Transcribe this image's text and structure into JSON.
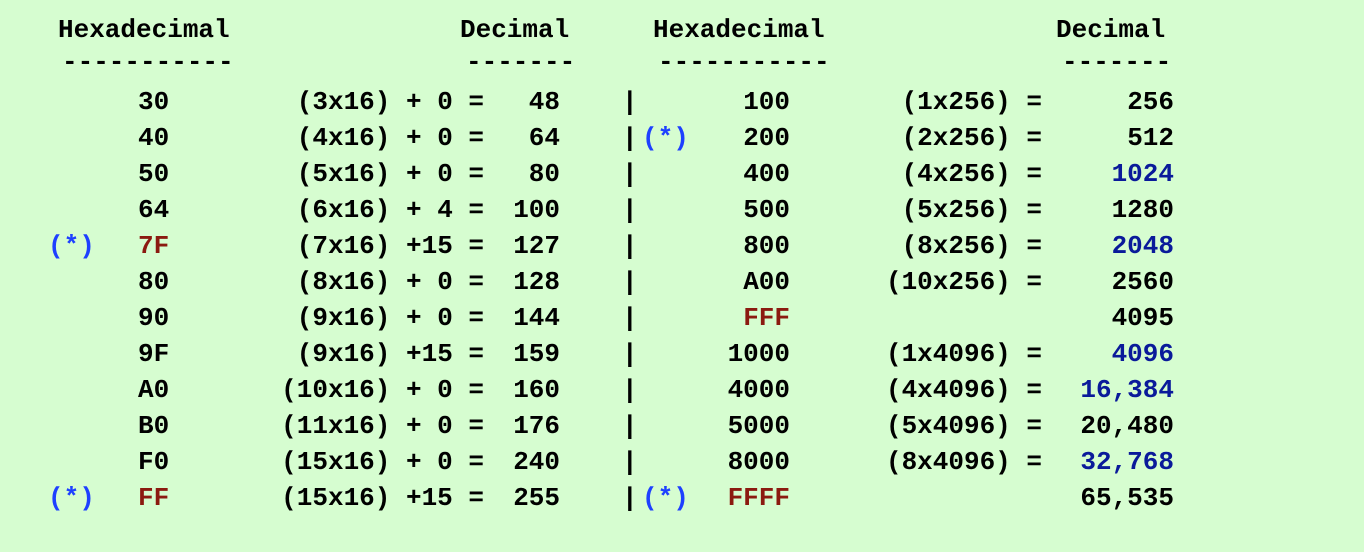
{
  "headers": {
    "hex_left": "Hexadecimal",
    "dec_left": "Decimal",
    "hex_right": "Hexadecimal",
    "dec_right": "Decimal",
    "rule_hex": "-----------",
    "rule_dec": "-------"
  },
  "colors": {
    "background": "#d6fdd0",
    "text": "#000000",
    "marker": "#1e40ff",
    "highlight_hex": "#8b1a10",
    "highlight_dec": "#0a1a9a"
  },
  "rows": [
    {
      "lm": "",
      "lh": "30",
      "lc": "(3x16) + 0 =",
      "ld": "48",
      "sep": "|",
      "rm": "",
      "rh": "100",
      "rc": "(1x256) =",
      "rd": "256"
    },
    {
      "lm": "",
      "lh": "40",
      "lc": "(4x16) + 0 =",
      "ld": "64",
      "sep": "|",
      "rm": "(*)",
      "rh": "200",
      "rc": "(2x256) =",
      "rd": "512"
    },
    {
      "lm": "",
      "lh": "50",
      "lc": "(5x16) + 0 =",
      "ld": "80",
      "sep": "|",
      "rm": "",
      "rh": "400",
      "rc": "(4x256) =",
      "rd": "1024",
      "rd_blue": true
    },
    {
      "lm": "",
      "lh": "64",
      "lc": "(6x16) + 4 =",
      "ld": "100",
      "sep": "|",
      "rm": "",
      "rh": "500",
      "rc": "(5x256) =",
      "rd": "1280"
    },
    {
      "lm": "(*)",
      "lh": "7F",
      "lh_red": true,
      "lc": "(7x16) +15 =",
      "ld": "127",
      "sep": "|",
      "rm": "",
      "rh": "800",
      "rc": "(8x256) =",
      "rd": "2048",
      "rd_blue": true
    },
    {
      "lm": "",
      "lh": "80",
      "lc": "(8x16) + 0 =",
      "ld": "128",
      "sep": "|",
      "rm": "",
      "rh": "A00",
      "rc": "(10x256) =",
      "rd": "2560"
    },
    {
      "lm": "",
      "lh": "90",
      "lc": "(9x16) + 0 =",
      "ld": "144",
      "sep": "|",
      "rm": "",
      "rh": "FFF",
      "rh_red": true,
      "rc": "",
      "rd": "4095"
    },
    {
      "lm": "",
      "lh": "9F",
      "lc": "(9x16) +15 =",
      "ld": "159",
      "sep": "|",
      "rm": "",
      "rh": "1000",
      "rc": "(1x4096) =",
      "rd": "4096",
      "rd_blue": true
    },
    {
      "lm": "",
      "lh": "A0",
      "lc": "(10x16) + 0 =",
      "ld": "160",
      "sep": "|",
      "rm": "",
      "rh": "4000",
      "rc": "(4x4096) =",
      "rd": "16,384",
      "rd_blue": true
    },
    {
      "lm": "",
      "lh": "B0",
      "lc": "(11x16) + 0 =",
      "ld": "176",
      "sep": "|",
      "rm": "",
      "rh": "5000",
      "rc": "(5x4096) =",
      "rd": "20,480"
    },
    {
      "lm": "",
      "lh": "F0",
      "lc": "(15x16) + 0 =",
      "ld": "240",
      "sep": "|",
      "rm": "",
      "rh": "8000",
      "rc": "(8x4096) =",
      "rd": "32,768",
      "rd_blue": true
    },
    {
      "lm": "(*)",
      "lh": "FF",
      "lh_red": true,
      "lc": "(15x16) +15 =",
      "ld": "255",
      "sep": "|",
      "rm": "(*)",
      "rh": "FFFF",
      "rh_red": true,
      "rc": "",
      "rd": "65,535"
    }
  ]
}
